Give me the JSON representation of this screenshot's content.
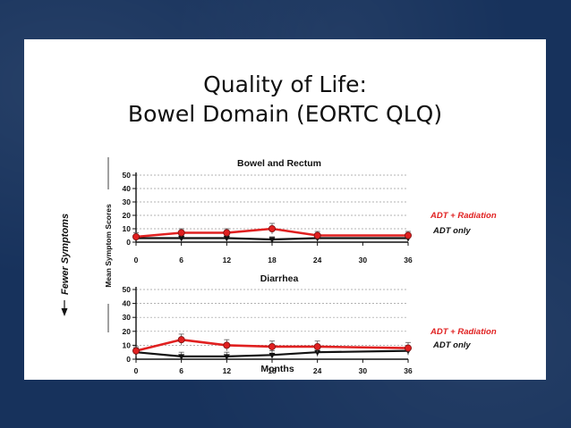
{
  "slide": {
    "title_line1": "Quality of Life:",
    "title_line2": "Bowel Domain (EORTC QLQ)",
    "background_color": "#17325c",
    "panel_color": "#ffffff"
  },
  "fewer_symptoms_label": "Fewer Symptoms",
  "shared_ylabel": "Mean Symptom Scores",
  "chart_data": [
    {
      "type": "line",
      "title": "Bowel and Rectum",
      "xlabel": "",
      "ylabel": "Mean Symptom Scores",
      "x": [
        0,
        6,
        12,
        18,
        24,
        36
      ],
      "xticks": [
        "0",
        "6",
        "12",
        "18",
        "24",
        "30",
        "36"
      ],
      "xlim": [
        0,
        36
      ],
      "ylim": [
        0,
        50
      ],
      "yticks": [
        "0",
        "10",
        "20",
        "30",
        "40",
        "50"
      ],
      "grid": true,
      "series": [
        {
          "name": "ADT + Radiation",
          "color": "#e02020",
          "values": [
            4,
            7,
            7,
            10,
            5,
            5
          ],
          "errors": [
            3,
            3,
            3,
            4,
            3,
            3
          ]
        },
        {
          "name": "ADT only",
          "color": "#111111",
          "values": [
            3,
            3,
            3,
            2,
            3,
            3
          ],
          "errors": [
            2,
            2,
            2,
            2,
            2,
            2
          ]
        }
      ],
      "legend": [
        "ADT + Radiation",
        "ADT only"
      ]
    },
    {
      "type": "line",
      "title": "Diarrhea",
      "xlabel": "Months",
      "ylabel": "Mean Symptom Scores",
      "x": [
        0,
        6,
        12,
        18,
        24,
        36
      ],
      "xticks": [
        "0",
        "6",
        "12",
        "18",
        "24",
        "30",
        "36"
      ],
      "xlim": [
        0,
        36
      ],
      "ylim": [
        0,
        50
      ],
      "yticks": [
        "0",
        "10",
        "20",
        "30",
        "40",
        "50"
      ],
      "grid": true,
      "series": [
        {
          "name": "ADT + Radiation",
          "color": "#e02020",
          "values": [
            6,
            14,
            10,
            9,
            9,
            8
          ],
          "errors": [
            3,
            4,
            4,
            4,
            4,
            4
          ]
        },
        {
          "name": "ADT only",
          "color": "#111111",
          "values": [
            5,
            2,
            2,
            3,
            5,
            6
          ],
          "errors": [
            3,
            3,
            3,
            3,
            3,
            3
          ]
        }
      ],
      "legend": [
        "ADT + Radiation",
        "ADT only"
      ]
    }
  ]
}
